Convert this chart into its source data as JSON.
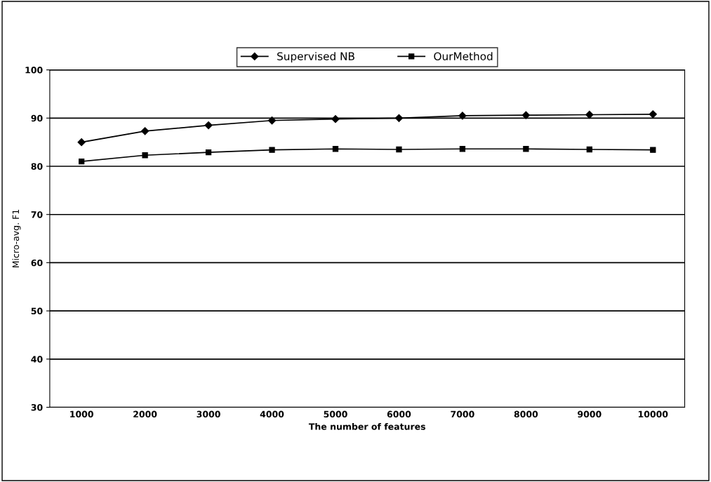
{
  "chart_data": {
    "type": "line",
    "xlabel": "The number of features",
    "ylabel": "Micro-avg. F1",
    "categories": [
      "1000",
      "2000",
      "3000",
      "4000",
      "5000",
      "6000",
      "7000",
      "8000",
      "9000",
      "10000"
    ],
    "series": [
      {
        "name": "Supervised NB",
        "color": "#000000",
        "marker": "diamond",
        "values": [
          85.0,
          87.3,
          88.5,
          89.5,
          89.8,
          90.0,
          90.5,
          90.6,
          90.7,
          90.8
        ]
      },
      {
        "name": "OurMethod",
        "color": "#000000",
        "marker": "square",
        "values": [
          81.0,
          82.3,
          82.9,
          83.4,
          83.6,
          83.5,
          83.6,
          83.6,
          83.5,
          83.4
        ]
      }
    ],
    "ylim": [
      30,
      100
    ],
    "yticks": [
      30,
      40,
      50,
      60,
      70,
      80,
      90,
      100
    ],
    "grid": "y",
    "legend": "top",
    "line_style": "solid"
  }
}
